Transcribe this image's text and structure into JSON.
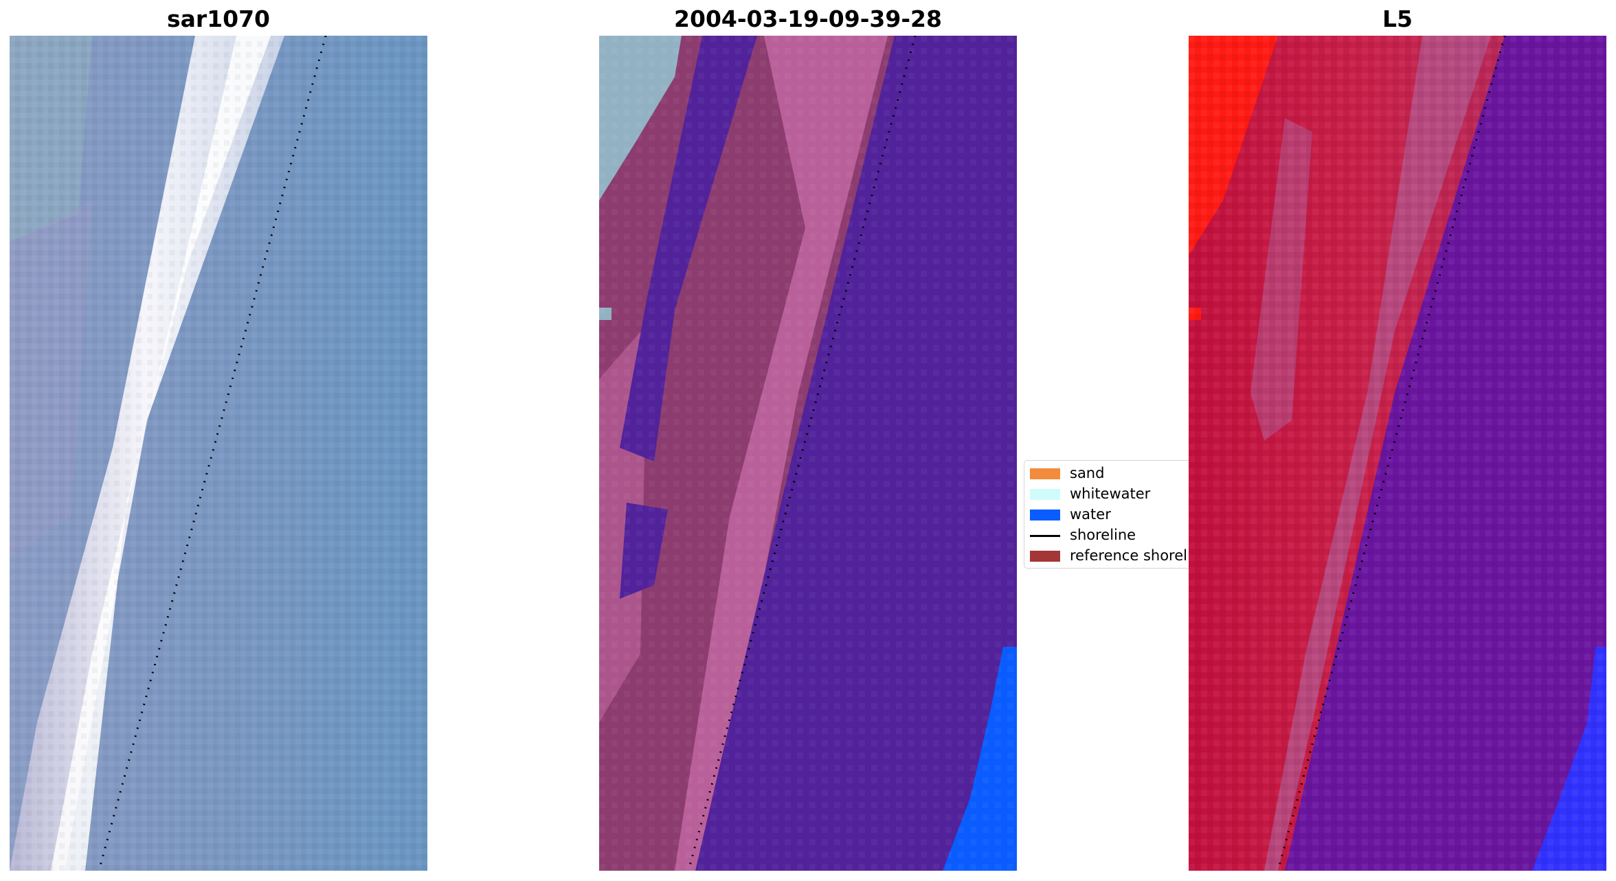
{
  "panels": [
    {
      "title": "sar1070"
    },
    {
      "title": "2004-03-19-09-39-28"
    },
    {
      "title": "L5"
    }
  ],
  "legend": {
    "items": [
      {
        "label": "sand",
        "kind": "patch",
        "color": "#f28c3c"
      },
      {
        "label": "whitewater",
        "kind": "patch",
        "color": "#cffcfb"
      },
      {
        "label": "water",
        "kind": "patch",
        "color": "#0a5cff"
      },
      {
        "label": "shoreline",
        "kind": "line",
        "color": "#000000"
      },
      {
        "label": "reference shoreli",
        "kind": "patch",
        "color": "#a33636"
      }
    ]
  },
  "colors": {
    "rgb_water": "#6a96c2",
    "rgb_breaker": "#f2f2f8",
    "class_water": "#51229a",
    "class_pink": "#b9609a",
    "class_sand_dark": "#8c3c6f",
    "class_wash": "#92b2c4",
    "class_blue": "#0a5cff",
    "l5_red": "#c2103d",
    "l5_bright_red": "#ff1a14",
    "l5_purple": "#6a159f",
    "l5_blue": "#3232ff"
  }
}
